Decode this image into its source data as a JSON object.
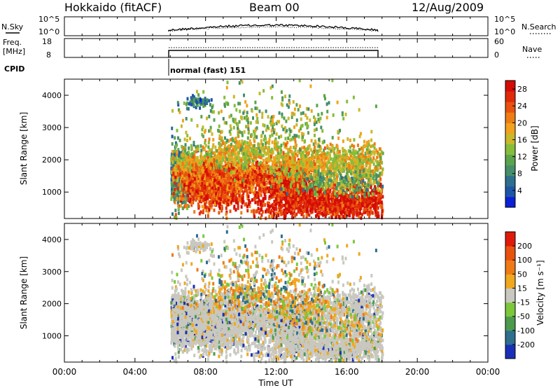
{
  "header": {
    "station": "Hokkaido (fitACF)",
    "beam": "Beam 00",
    "date": "12/Aug/2009"
  },
  "noise_panel": {
    "left_label": "N.Sky",
    "right_label": "N.Search",
    "left_ticks": [
      "10^5",
      "10^0"
    ],
    "right_ticks": [
      "10^5",
      "10^0"
    ]
  },
  "freq_panel": {
    "left_label_1": "Freq.",
    "left_label_2": "[MHz]",
    "right_label": "Nave",
    "left_ticks": [
      "18",
      "8"
    ],
    "right_ticks": [
      "60",
      "0"
    ]
  },
  "cpid": {
    "label": "CPID",
    "mode_text": "normal (fast) 151"
  },
  "chart_data": [
    {
      "type": "heatmap",
      "parameter": "power",
      "ylabel": "Slant Range [km]",
      "ylim": [
        180,
        4500
      ],
      "yticks": [
        "1000",
        "2000",
        "3000",
        "4000"
      ],
      "xlim_hours": [
        0,
        24
      ],
      "data_window_hours": [
        6,
        18
      ],
      "colorbar": {
        "label": "Power [dB]",
        "ticks": [
          "4",
          "8",
          "12",
          "16",
          "20",
          "24",
          "28"
        ],
        "range": [
          0,
          30
        ],
        "colors": [
          "#0a21d6",
          "#1d56a8",
          "#2e6e8e",
          "#468e6a",
          "#5aa44c",
          "#86bd3a",
          "#c9b82a",
          "#f2a21c",
          "#ee7d14",
          "#e8520e",
          "#e02a0a",
          "#d40c06"
        ]
      }
    },
    {
      "type": "heatmap",
      "parameter": "velocity",
      "ylabel": "Slant Range [km]",
      "ylim": [
        180,
        4500
      ],
      "yticks": [
        "1000",
        "2000",
        "3000",
        "4000"
      ],
      "xlim_hours": [
        0,
        24
      ],
      "data_window_hours": [
        6,
        18
      ],
      "colorbar": {
        "label": "Velocity [m s⁻¹]",
        "ticks": [
          "200",
          "100",
          "50",
          "15",
          "-15",
          "-50",
          "-100",
          "-200"
        ],
        "colors": [
          "#1a2fb8",
          "#2e6e8e",
          "#4b9a4e",
          "#7cc83a",
          "#c8c8c0",
          "#f0a81e",
          "#ef7a16",
          "#e8520e",
          "#e01a0a"
        ]
      }
    }
  ],
  "time_axis": {
    "ticks": [
      "00:00",
      "04:00",
      "08:00",
      "12:00",
      "16:00",
      "20:00",
      "00:00"
    ],
    "label": "Time UT"
  }
}
